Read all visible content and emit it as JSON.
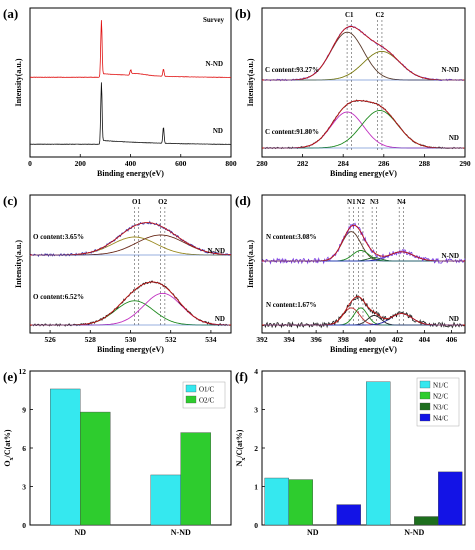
{
  "chart_data": [
    {
      "panel": "(a)",
      "type": "line",
      "xlabel": "Binding energy(eV)",
      "ylabel": "Intensity(a.u.)",
      "xlim": [
        0,
        800
      ],
      "xticks": [
        "0",
        "200",
        "400",
        "600",
        "800"
      ],
      "legend": [
        "Survey"
      ],
      "labels": [
        "N-ND",
        "ND"
      ],
      "colors": {
        "N-ND": "#e01010",
        "ND": "#101010"
      },
      "peaks": [
        {
          "series": "N-ND",
          "x": 284,
          "height": 0.92
        },
        {
          "series": "N-ND",
          "x": 400,
          "height": 0.08
        },
        {
          "series": "N-ND",
          "x": 531,
          "height": 0.12
        },
        {
          "series": "ND",
          "x": 284,
          "height": 0.95
        },
        {
          "series": "ND",
          "x": 531,
          "height": 0.25
        }
      ]
    },
    {
      "panel": "(b)",
      "type": "line",
      "xlabel": "Binding energy(eV)",
      "ylabel": "Intensity(a.u.)",
      "xlim": [
        280,
        290
      ],
      "xticks": [
        "280",
        "282",
        "284",
        "286",
        "288",
        "290"
      ],
      "peak_labels": [
        "C1",
        "C2"
      ],
      "peak_positions": [
        284.3,
        285.8
      ],
      "annotations": [
        "C content:93.27%",
        "C content:91.80%"
      ],
      "labels": [
        "N-ND",
        "ND"
      ]
    },
    {
      "panel": "(c)",
      "type": "line",
      "xlabel": "Binding energy(eV)",
      "ylabel": "Intensity(a.u.)",
      "xlim": [
        525,
        535
      ],
      "xticks": [
        "526",
        "528",
        "530",
        "532",
        "534"
      ],
      "peak_labels": [
        "O1",
        "O2"
      ],
      "peak_positions": [
        530.3,
        531.6
      ],
      "annotations": [
        "O content:3.65%",
        "O content:6.52%"
      ],
      "labels": [
        "N-ND",
        "ND"
      ]
    },
    {
      "panel": "(d)",
      "type": "line",
      "xlabel": "Binding energy(eV)",
      "ylabel": "Intensity(a.u.)",
      "xlim": [
        392,
        407
      ],
      "xticks": [
        "392",
        "394",
        "396",
        "398",
        "400",
        "402",
        "404",
        "406"
      ],
      "peak_labels": [
        "N1",
        "N2",
        "N3",
        "N4"
      ],
      "peak_positions": [
        398.6,
        399.3,
        400.3,
        402.3
      ],
      "annotations": [
        "N content:3.08%",
        "N content:1.67%"
      ],
      "labels": [
        "N-ND",
        "ND"
      ]
    },
    {
      "panel": "(e)",
      "type": "bar",
      "ylabel": "O",
      "ylabel_sub": "x",
      "ylabel_tail": "/C(at%)",
      "ylim": [
        0,
        12
      ],
      "yticks": [
        "0",
        "3",
        "6",
        "9",
        "12"
      ],
      "categories": [
        "ND",
        "N-ND"
      ],
      "series": [
        {
          "name": "O1/C",
          "color": "#35e8ef",
          "values": [
            10.6,
            3.9
          ]
        },
        {
          "name": "O2/C",
          "color": "#2ecc2e",
          "values": [
            8.8,
            7.2
          ]
        }
      ]
    },
    {
      "panel": "(f)",
      "type": "bar",
      "ylabel": "N",
      "ylabel_sub": "x",
      "ylabel_tail": "/C(at%)",
      "ylim": [
        0,
        4
      ],
      "yticks": [
        "0",
        "1",
        "2",
        "3",
        "4"
      ],
      "categories": [
        "ND",
        "N-ND"
      ],
      "series": [
        {
          "name": "N1/C",
          "color": "#35e8ef",
          "values": [
            1.22,
            3.72
          ]
        },
        {
          "name": "N2/C",
          "color": "#2ecc2e",
          "values": [
            1.18,
            0
          ]
        },
        {
          "name": "N3/C",
          "color": "#1d6e1d",
          "values": [
            0,
            0.22
          ]
        },
        {
          "name": "N4/C",
          "color": "#1313e6",
          "values": [
            0.53,
            1.38
          ]
        }
      ]
    }
  ]
}
